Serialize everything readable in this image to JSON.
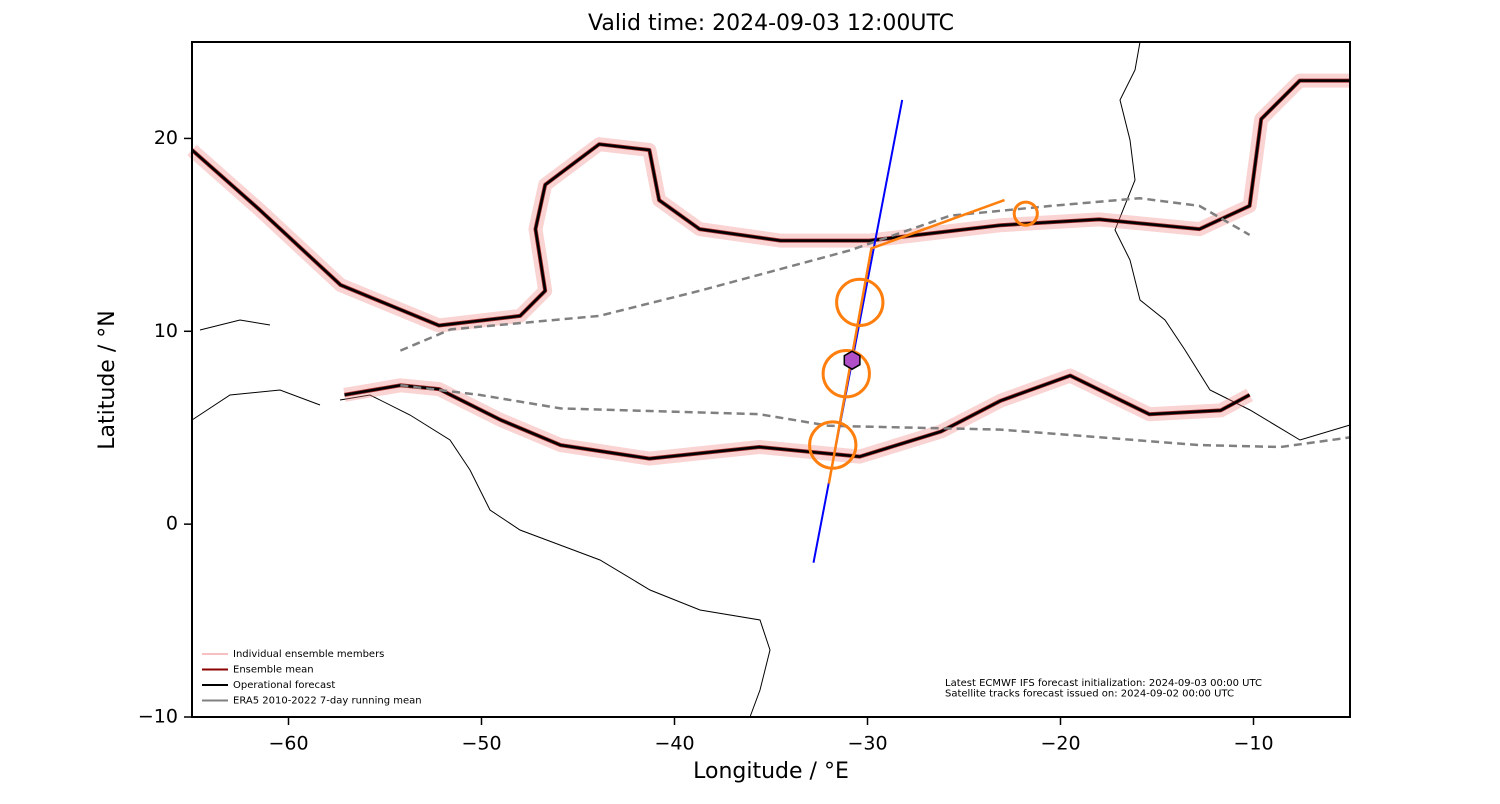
{
  "chart_data": {
    "type": "map",
    "title": "Valid time: 2024-09-03 12:00UTC",
    "x_label": "Longitude / °E",
    "y_label": "Latitude / °N",
    "xlim": [
      -65,
      -5
    ],
    "ylim": [
      -10,
      25
    ],
    "xticks": [
      {
        "value": -60,
        "label": "−60"
      },
      {
        "value": -50,
        "label": "−50"
      },
      {
        "value": -40,
        "label": "−40"
      },
      {
        "value": -30,
        "label": "−30"
      },
      {
        "value": -20,
        "label": "−20"
      },
      {
        "value": -10,
        "label": "−10"
      }
    ],
    "yticks": [
      {
        "value": -10,
        "label": "−10"
      },
      0,
      10,
      20
    ],
    "legend_position": "lower left",
    "legend": [
      {
        "label": "Individual ensemble members",
        "color": "#f08080"
      },
      {
        "label": "Ensemble mean",
        "color": "#8b0000"
      },
      {
        "label": "Operational forecast",
        "color": "#000000"
      },
      {
        "label": "ERA5 2010-2022 7-day running mean",
        "color": "#808080"
      }
    ],
    "series": [
      {
        "color": "#000000",
        "style": "solid",
        "x": [
          -65,
          -61.5,
          -57.3,
          -52.2,
          -48,
          -46.7,
          -47.2,
          -46.7,
          -43.9,
          -41.3,
          -40.8,
          -38.7,
          -34.5,
          -29.9,
          -23.1,
          -18,
          -12.8,
          -10.2,
          -9.6,
          -7.6,
          -5,
          null,
          -57.1,
          -54.2,
          -52.2,
          -49,
          -45.9,
          -41.3,
          -35.6,
          -30.4,
          -26.2,
          -23.1,
          -19.5,
          -15.4,
          -11.7,
          -10.2
        ],
        "y": [
          19.4,
          16.3,
          12.4,
          10.3,
          10.8,
          12.1,
          15.3,
          17.6,
          19.7,
          19.4,
          16.8,
          15.3,
          14.7,
          14.7,
          15.5,
          15.8,
          15.3,
          16.5,
          21,
          23,
          23,
          null,
          6.7,
          7.2,
          7,
          5.4,
          4.1,
          3.4,
          4,
          3.5,
          4.8,
          6.4,
          7.7,
          5.7,
          5.9,
          6.7
        ]
      },
      {
        "color": "#808080",
        "style": "dashed",
        "x": [
          -54.2,
          -51.6,
          -43.9,
          -38.7,
          -30.9,
          -25.7,
          -20.5,
          -15.9,
          -12.8,
          -10.2,
          null,
          -54.2,
          -50.1,
          -45.9,
          -35.6,
          -32,
          -23.1,
          -12.8,
          -8.6,
          -5
        ],
        "y": [
          9,
          10.1,
          10.8,
          12.1,
          14.2,
          16,
          16.5,
          16.9,
          16.5,
          15,
          null,
          7.2,
          6.7,
          6,
          5.7,
          5.1,
          4.9,
          4.1,
          4,
          4.5
        ]
      }
    ],
    "satellite_track": {
      "color": "#0000ff",
      "x": [
        -32.8,
        -28.2
      ],
      "y": [
        -2,
        22
      ]
    },
    "forecast_track": {
      "color": "#ff7f0e",
      "x": [
        -32,
        -29.8,
        -22.9
      ],
      "y": [
        2.1,
        14.3,
        16.8
      ]
    },
    "circles": {
      "color": "#ff7f0e",
      "x": [
        -31.8,
        -31.1,
        -30.4,
        -21.8
      ],
      "y": [
        4.1,
        7.8,
        11.5,
        16.1
      ],
      "radius": [
        1.2,
        1.2,
        1.2,
        0.6
      ]
    },
    "hexagon": {
      "color": "#b04fc8",
      "x": -30.8,
      "y": 8.5
    },
    "annotations": [
      "Latest ECMWF IFS forecast initialization: 2024-09-03 00:00 UTC",
      "Satellite tracks forecast issued on: 2024-09-02 00:00 UTC"
    ]
  }
}
